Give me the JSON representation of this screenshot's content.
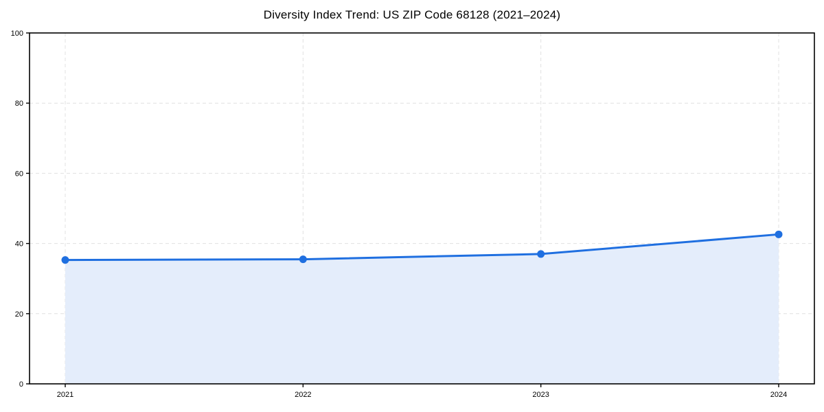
{
  "chart_data": {
    "type": "line",
    "title": "Diversity Index Trend: US ZIP Code 68128 (2021–2024)",
    "series": [
      {
        "name": "Diversity Index",
        "x": [
          2021,
          2022,
          2023,
          2024
        ],
        "values": [
          35.3,
          35.5,
          37.0,
          42.6
        ]
      }
    ],
    "xticklabels": [
      "2021",
      "2022",
      "2023",
      "2024"
    ],
    "yticks": [
      0,
      20,
      40,
      60,
      80,
      100
    ],
    "ylim": [
      0,
      100
    ],
    "xlabel": "",
    "ylabel": "",
    "grid": true,
    "grid_style": "dashed",
    "legend": "none",
    "area_fill": true,
    "colors": {
      "line": "#1f6fe0",
      "marker": "#1f6fe0",
      "area": "#e4edfb",
      "gridline": "#e0e0e0",
      "spine": "#000000",
      "background": "#ffffff",
      "text": "#000000"
    }
  }
}
